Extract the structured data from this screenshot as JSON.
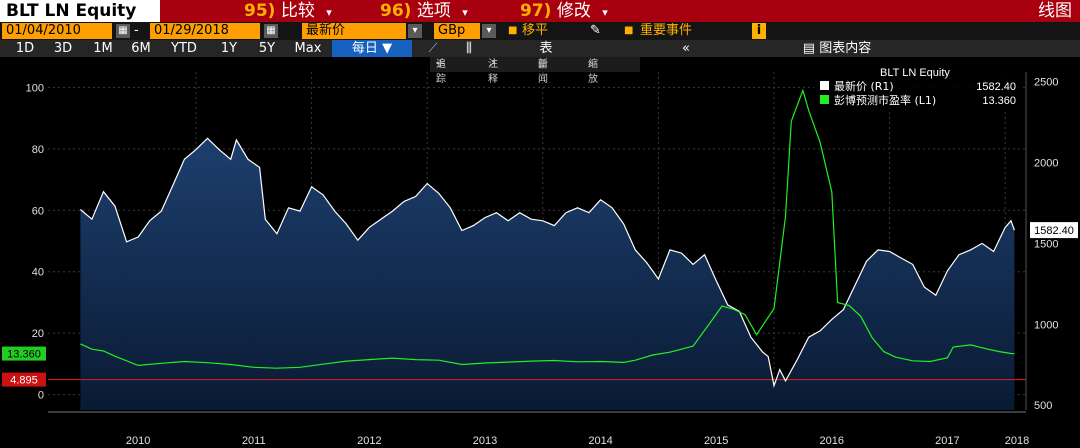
{
  "header": {
    "ticker": "BLT LN Equity",
    "menu": [
      {
        "num": "95)",
        "label": "比较"
      },
      {
        "num": "96)",
        "label": "选项"
      },
      {
        "num": "97)",
        "label": "修改"
      }
    ],
    "view_label": "线图"
  },
  "controls": {
    "start_date": "01/04/2010",
    "dash": "-",
    "end_date": "01/29/2018",
    "field": "最新价",
    "currency": "GBp",
    "moving": "移平",
    "events": "重要事件",
    "info": "i"
  },
  "periods": [
    "1D",
    "3D",
    "1M",
    "6M",
    "YTD",
    "1Y",
    "5Y",
    "Max"
  ],
  "frequency": "每日",
  "table_label": "表",
  "chart_contents_label": "图表内容",
  "tools": [
    "追踪",
    "注释",
    "新闻",
    "缩放"
  ],
  "colors": {
    "price": "#ffffff",
    "pe": "#22ee22",
    "ref": "#dd2222",
    "area_top": "#1d3f6e",
    "area_bottom": "#0a1a33"
  },
  "chart_data": {
    "type": "line",
    "x_labels": [
      "2010",
      "2011",
      "2012",
      "2013",
      "2014",
      "2015",
      "2016",
      "2017",
      "2018"
    ],
    "legend": {
      "title": "BLT LN Equity",
      "entries": [
        {
          "name": "最新价 (R1)",
          "value": "1582.40"
        },
        {
          "name": "彭博预测市盈率 (L1)",
          "value": "13.360"
        }
      ]
    },
    "left_axis": {
      "ticks": [
        0,
        20,
        40,
        60,
        80,
        100
      ],
      "range": [
        -5,
        105
      ]
    },
    "right_axis": {
      "ticks": [
        500,
        1000,
        1500,
        2000,
        2500
      ],
      "range": [
        470,
        2560
      ]
    },
    "last_price_label": "1582.40",
    "pe_label": "13.360",
    "ref_label": "4.895",
    "ref_value": 4.895,
    "series": [
      {
        "name": "最新价",
        "axis": "right",
        "points": [
          [
            2010.0,
            1710
          ],
          [
            2010.1,
            1650
          ],
          [
            2010.2,
            1820
          ],
          [
            2010.3,
            1730
          ],
          [
            2010.4,
            1510
          ],
          [
            2010.5,
            1540
          ],
          [
            2010.6,
            1640
          ],
          [
            2010.7,
            1700
          ],
          [
            2010.8,
            1860
          ],
          [
            2010.9,
            2020
          ],
          [
            2011.0,
            2080
          ],
          [
            2011.1,
            2150
          ],
          [
            2011.2,
            2080
          ],
          [
            2011.3,
            2020
          ],
          [
            2011.35,
            2140
          ],
          [
            2011.45,
            2020
          ],
          [
            2011.55,
            1970
          ],
          [
            2011.6,
            1650
          ],
          [
            2011.7,
            1560
          ],
          [
            2011.8,
            1720
          ],
          [
            2011.9,
            1700
          ],
          [
            2012.0,
            1850
          ],
          [
            2012.1,
            1800
          ],
          [
            2012.2,
            1700
          ],
          [
            2012.3,
            1620
          ],
          [
            2012.4,
            1520
          ],
          [
            2012.5,
            1600
          ],
          [
            2012.6,
            1650
          ],
          [
            2012.7,
            1700
          ],
          [
            2012.8,
            1760
          ],
          [
            2012.9,
            1790
          ],
          [
            2013.0,
            1870
          ],
          [
            2013.1,
            1810
          ],
          [
            2013.2,
            1720
          ],
          [
            2013.3,
            1580
          ],
          [
            2013.4,
            1610
          ],
          [
            2013.5,
            1660
          ],
          [
            2013.6,
            1690
          ],
          [
            2013.7,
            1640
          ],
          [
            2013.8,
            1690
          ],
          [
            2013.9,
            1650
          ],
          [
            2014.0,
            1640
          ],
          [
            2014.1,
            1610
          ],
          [
            2014.2,
            1690
          ],
          [
            2014.3,
            1720
          ],
          [
            2014.4,
            1690
          ],
          [
            2014.5,
            1770
          ],
          [
            2014.6,
            1720
          ],
          [
            2014.7,
            1620
          ],
          [
            2014.8,
            1460
          ],
          [
            2014.9,
            1380
          ],
          [
            2015.0,
            1280
          ],
          [
            2015.1,
            1460
          ],
          [
            2015.2,
            1440
          ],
          [
            2015.3,
            1370
          ],
          [
            2015.4,
            1430
          ],
          [
            2015.5,
            1270
          ],
          [
            2015.6,
            1120
          ],
          [
            2015.7,
            1080
          ],
          [
            2015.8,
            920
          ],
          [
            2015.9,
            830
          ],
          [
            2015.95,
            800
          ],
          [
            2016.0,
            620
          ],
          [
            2016.05,
            720
          ],
          [
            2016.1,
            650
          ],
          [
            2016.2,
            780
          ],
          [
            2016.3,
            920
          ],
          [
            2016.4,
            960
          ],
          [
            2016.5,
            1030
          ],
          [
            2016.6,
            1090
          ],
          [
            2016.7,
            1240
          ],
          [
            2016.8,
            1390
          ],
          [
            2016.9,
            1460
          ],
          [
            2017.0,
            1450
          ],
          [
            2017.1,
            1410
          ],
          [
            2017.2,
            1370
          ],
          [
            2017.3,
            1230
          ],
          [
            2017.4,
            1180
          ],
          [
            2017.5,
            1330
          ],
          [
            2017.6,
            1430
          ],
          [
            2017.7,
            1460
          ],
          [
            2017.8,
            1500
          ],
          [
            2017.9,
            1450
          ],
          [
            2018.0,
            1600
          ],
          [
            2018.05,
            1640
          ],
          [
            2018.08,
            1582
          ]
        ]
      },
      {
        "name": "彭博预测市盈率",
        "axis": "left",
        "points": [
          [
            2010.0,
            16.5
          ],
          [
            2010.1,
            14.8
          ],
          [
            2010.2,
            14.2
          ],
          [
            2010.3,
            12.5
          ],
          [
            2010.5,
            9.5
          ],
          [
            2010.7,
            10.2
          ],
          [
            2010.9,
            10.8
          ],
          [
            2011.1,
            10.4
          ],
          [
            2011.3,
            9.8
          ],
          [
            2011.5,
            8.9
          ],
          [
            2011.7,
            8.6
          ],
          [
            2011.9,
            8.9
          ],
          [
            2012.1,
            9.9
          ],
          [
            2012.3,
            10.9
          ],
          [
            2012.5,
            11.4
          ],
          [
            2012.7,
            11.9
          ],
          [
            2012.9,
            11.4
          ],
          [
            2013.1,
            11.2
          ],
          [
            2013.3,
            9.8
          ],
          [
            2013.5,
            10.3
          ],
          [
            2013.7,
            10.6
          ],
          [
            2013.9,
            10.9
          ],
          [
            2014.1,
            11.1
          ],
          [
            2014.3,
            10.7
          ],
          [
            2014.5,
            10.8
          ],
          [
            2014.7,
            10.5
          ],
          [
            2014.8,
            11.2
          ],
          [
            2014.95,
            12.9
          ],
          [
            2015.1,
            13.8
          ],
          [
            2015.3,
            15.8
          ],
          [
            2015.45,
            23.5
          ],
          [
            2015.55,
            28.8
          ],
          [
            2015.65,
            27.8
          ],
          [
            2015.75,
            26.0
          ],
          [
            2015.85,
            19.5
          ],
          [
            2016.0,
            28.0
          ],
          [
            2016.1,
            58.0
          ],
          [
            2016.15,
            89.0
          ],
          [
            2016.25,
            99.0
          ],
          [
            2016.3,
            92.5
          ],
          [
            2016.4,
            82.0
          ],
          [
            2016.45,
            74.0
          ],
          [
            2016.5,
            66.0
          ],
          [
            2016.55,
            30.0
          ],
          [
            2016.65,
            29.0
          ],
          [
            2016.75,
            25.5
          ],
          [
            2016.85,
            18.5
          ],
          [
            2016.95,
            14.0
          ],
          [
            2017.05,
            12.2
          ],
          [
            2017.2,
            11.0
          ],
          [
            2017.35,
            10.8
          ],
          [
            2017.5,
            12.0
          ],
          [
            2017.55,
            15.5
          ],
          [
            2017.7,
            16.2
          ],
          [
            2017.85,
            14.8
          ],
          [
            2017.95,
            14.0
          ],
          [
            2018.05,
            13.4
          ],
          [
            2018.08,
            13.36
          ]
        ]
      }
    ]
  }
}
